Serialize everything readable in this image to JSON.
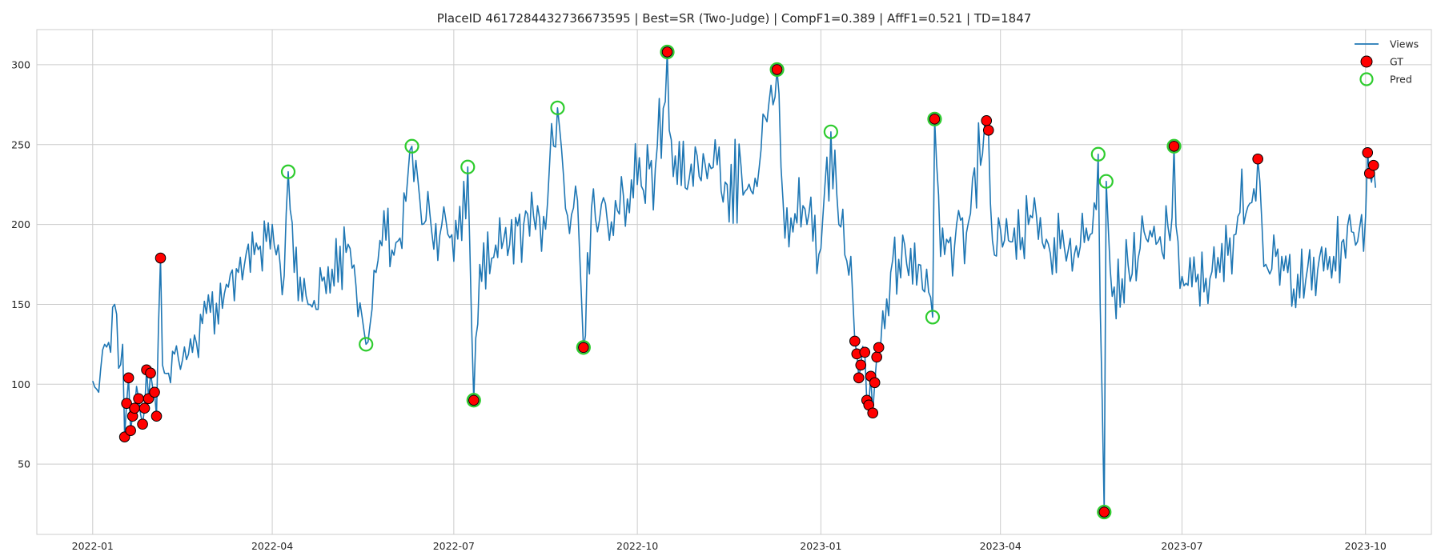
{
  "chart_data": {
    "type": "line",
    "title": "PlaceID 4617284432736673595 | Best=SR (Two-Judge) | CompF1=0.389 | AffF1=0.521 | TD=1847",
    "xlabel": "",
    "ylabel": "",
    "x_range": [
      "2021-12-04",
      "2023-11-03"
    ],
    "ylim": [
      6,
      322
    ],
    "grid": true,
    "legend_position": "top-right",
    "x_ticks": [
      {
        "date": "2022-01-01",
        "label": "2022-01"
      },
      {
        "date": "2022-04-01",
        "label": "2022-04"
      },
      {
        "date": "2022-07-01",
        "label": "2022-07"
      },
      {
        "date": "2022-10-01",
        "label": "2022-10"
      },
      {
        "date": "2023-01-01",
        "label": "2023-01"
      },
      {
        "date": "2023-04-01",
        "label": "2023-04"
      },
      {
        "date": "2023-07-01",
        "label": "2023-07"
      },
      {
        "date": "2023-10-01",
        "label": "2023-10"
      }
    ],
    "y_ticks": [
      50,
      100,
      150,
      200,
      250,
      300
    ],
    "legend": [
      {
        "name": "Views",
        "kind": "line",
        "color": "#1f77b4"
      },
      {
        "name": "GT",
        "kind": "filled-circle",
        "color": "#ff0000",
        "edge": "#000000"
      },
      {
        "name": "Pred",
        "kind": "hollow-circle",
        "color": "#2ecc2e"
      }
    ],
    "views_series": {
      "name": "Views",
      "color": "#1f77b4",
      "start_date": "2022-01-01",
      "end_date": "2023-10-06",
      "key_points": [
        [
          "2022-01-01",
          102
        ],
        [
          "2022-01-04",
          95
        ],
        [
          "2022-01-07",
          125
        ],
        [
          "2022-01-10",
          120
        ],
        [
          "2022-01-12",
          150
        ],
        [
          "2022-01-14",
          110
        ],
        [
          "2022-01-16",
          125
        ],
        [
          "2022-01-17",
          67
        ],
        [
          "2022-01-18",
          88
        ],
        [
          "2022-01-19",
          104
        ],
        [
          "2022-01-20",
          71
        ],
        [
          "2022-01-21",
          80
        ],
        [
          "2022-01-22",
          85
        ],
        [
          "2022-01-24",
          91
        ],
        [
          "2022-01-26",
          75
        ],
        [
          "2022-01-27",
          85
        ],
        [
          "2022-01-28",
          109
        ],
        [
          "2022-01-29",
          91
        ],
        [
          "2022-01-30",
          107
        ],
        [
          "2022-02-01",
          95
        ],
        [
          "2022-02-02",
          80
        ],
        [
          "2022-02-04",
          179
        ],
        [
          "2022-02-05",
          112
        ],
        [
          "2022-02-15",
          115
        ],
        [
          "2022-03-01",
          145
        ],
        [
          "2022-03-15",
          170
        ],
        [
          "2022-04-01",
          200
        ],
        [
          "2022-04-07",
          168
        ],
        [
          "2022-04-09",
          233
        ],
        [
          "2022-04-12",
          170
        ],
        [
          "2022-04-20",
          150
        ],
        [
          "2022-05-01",
          172
        ],
        [
          "2022-05-10",
          185
        ],
        [
          "2022-05-18",
          125
        ],
        [
          "2022-05-25",
          190
        ],
        [
          "2022-06-05",
          185
        ],
        [
          "2022-06-10",
          249
        ],
        [
          "2022-06-15",
          200
        ],
        [
          "2022-06-25",
          200
        ],
        [
          "2022-07-05",
          190
        ],
        [
          "2022-07-08",
          236
        ],
        [
          "2022-07-11",
          90
        ],
        [
          "2022-07-14",
          175
        ],
        [
          "2022-07-25",
          185
        ],
        [
          "2022-08-05",
          200
        ],
        [
          "2022-08-15",
          205
        ],
        [
          "2022-08-22",
          273
        ],
        [
          "2022-08-26",
          210
        ],
        [
          "2022-09-01",
          215
        ],
        [
          "2022-09-04",
          123
        ],
        [
          "2022-09-08",
          210
        ],
        [
          "2022-09-20",
          215
        ],
        [
          "2022-10-01",
          225
        ],
        [
          "2022-10-10",
          235
        ],
        [
          "2022-10-16",
          308
        ],
        [
          "2022-10-19",
          230
        ],
        [
          "2022-11-01",
          230
        ],
        [
          "2022-11-15",
          225
        ],
        [
          "2022-12-01",
          235
        ],
        [
          "2022-12-10",
          297
        ],
        [
          "2022-12-13",
          215
        ],
        [
          "2022-12-25",
          200
        ],
        [
          "2023-01-01",
          185
        ],
        [
          "2023-01-06",
          258
        ],
        [
          "2023-01-10",
          200
        ],
        [
          "2023-01-16",
          180
        ],
        [
          "2023-01-18",
          127
        ],
        [
          "2023-01-19",
          119
        ],
        [
          "2023-01-20",
          104
        ],
        [
          "2023-01-21",
          112
        ],
        [
          "2023-01-23",
          120
        ],
        [
          "2023-01-24",
          90
        ],
        [
          "2023-01-25",
          87
        ],
        [
          "2023-01-26",
          105
        ],
        [
          "2023-01-27",
          82
        ],
        [
          "2023-01-28",
          101
        ],
        [
          "2023-01-29",
          117
        ],
        [
          "2023-01-30",
          123
        ],
        [
          "2023-02-05",
          170
        ],
        [
          "2023-02-15",
          185
        ],
        [
          "2023-02-26",
          142
        ],
        [
          "2023-02-27",
          266
        ],
        [
          "2023-03-02",
          180
        ],
        [
          "2023-03-15",
          195
        ],
        [
          "2023-03-25",
          265
        ],
        [
          "2023-03-26",
          259
        ],
        [
          "2023-03-28",
          190
        ],
        [
          "2023-04-15",
          200
        ],
        [
          "2023-05-01",
          185
        ],
        [
          "2023-05-15",
          190
        ],
        [
          "2023-05-20",
          244
        ],
        [
          "2023-05-23",
          20
        ],
        [
          "2023-05-24",
          227
        ],
        [
          "2023-05-27",
          155
        ],
        [
          "2023-06-10",
          185
        ],
        [
          "2023-06-25",
          190
        ],
        [
          "2023-06-27",
          249
        ],
        [
          "2023-06-30",
          160
        ],
        [
          "2023-07-20",
          170
        ],
        [
          "2023-08-08",
          241
        ],
        [
          "2023-08-12",
          175
        ],
        [
          "2023-09-01",
          165
        ],
        [
          "2023-09-15",
          180
        ],
        [
          "2023-09-25",
          195
        ],
        [
          "2023-10-01",
          205
        ],
        [
          "2023-10-02",
          245
        ],
        [
          "2023-10-03",
          232
        ],
        [
          "2023-10-05",
          237
        ],
        [
          "2023-10-06",
          223
        ]
      ]
    },
    "gt_points": [
      [
        "2022-01-17",
        67
      ],
      [
        "2022-01-18",
        88
      ],
      [
        "2022-01-19",
        104
      ],
      [
        "2022-01-20",
        71
      ],
      [
        "2022-01-21",
        80
      ],
      [
        "2022-01-22",
        85
      ],
      [
        "2022-01-24",
        91
      ],
      [
        "2022-01-26",
        75
      ],
      [
        "2022-01-27",
        85
      ],
      [
        "2022-01-28",
        109
      ],
      [
        "2022-01-29",
        91
      ],
      [
        "2022-01-30",
        107
      ],
      [
        "2022-02-01",
        95
      ],
      [
        "2022-02-02",
        80
      ],
      [
        "2022-02-04",
        179
      ],
      [
        "2022-07-11",
        90
      ],
      [
        "2022-09-04",
        123
      ],
      [
        "2022-10-16",
        308
      ],
      [
        "2022-12-10",
        297
      ],
      [
        "2023-01-18",
        127
      ],
      [
        "2023-01-19",
        119
      ],
      [
        "2023-01-20",
        104
      ],
      [
        "2023-01-21",
        112
      ],
      [
        "2023-01-23",
        120
      ],
      [
        "2023-01-24",
        90
      ],
      [
        "2023-01-25",
        87
      ],
      [
        "2023-01-26",
        105
      ],
      [
        "2023-01-27",
        82
      ],
      [
        "2023-01-28",
        101
      ],
      [
        "2023-01-29",
        117
      ],
      [
        "2023-01-30",
        123
      ],
      [
        "2023-02-27",
        266
      ],
      [
        "2023-03-25",
        265
      ],
      [
        "2023-03-26",
        259
      ],
      [
        "2023-05-23",
        20
      ],
      [
        "2023-06-27",
        249
      ],
      [
        "2023-08-08",
        241
      ],
      [
        "2023-10-02",
        245
      ],
      [
        "2023-10-03",
        232
      ],
      [
        "2023-10-05",
        237
      ]
    ],
    "pred_points": [
      [
        "2022-04-09",
        233
      ],
      [
        "2022-05-18",
        125
      ],
      [
        "2022-06-10",
        249
      ],
      [
        "2022-07-08",
        236
      ],
      [
        "2022-07-11",
        90
      ],
      [
        "2022-08-22",
        273
      ],
      [
        "2022-09-04",
        123
      ],
      [
        "2022-10-16",
        308
      ],
      [
        "2022-12-10",
        297
      ],
      [
        "2023-01-06",
        258
      ],
      [
        "2023-02-26",
        142
      ],
      [
        "2023-02-27",
        266
      ],
      [
        "2023-05-20",
        244
      ],
      [
        "2023-05-23",
        20
      ],
      [
        "2023-05-24",
        227
      ],
      [
        "2023-06-27",
        249
      ]
    ]
  }
}
